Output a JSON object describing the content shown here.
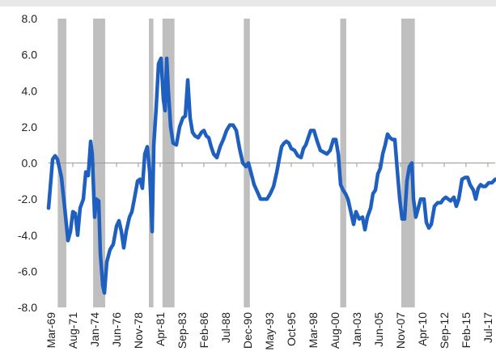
{
  "chart_data": {
    "type": "line",
    "x": [
      1968.9,
      1969.35,
      1969.62,
      1969.89,
      1970.33,
      1970.69,
      1971.05,
      1971.32,
      1971.59,
      1971.86,
      1972.12,
      1972.39,
      1972.75,
      1973.02,
      1973.29,
      1973.56,
      1973.73,
      1974.0,
      1974.18,
      1974.45,
      1974.63,
      1974.9,
      1975.08,
      1975.34,
      1975.7,
      1976.06,
      1976.42,
      1976.69,
      1976.96,
      1977.22,
      1977.49,
      1977.85,
      1978.12,
      1978.39,
      1978.75,
      1979.02,
      1979.28,
      1979.55,
      1979.82,
      1980.09,
      1980.36,
      1980.54,
      1980.8,
      1981.07,
      1981.34,
      1981.61,
      1981.79,
      1981.97,
      1982.15,
      1982.41,
      1982.68,
      1983.04,
      1983.4,
      1983.76,
      1984.03,
      1984.3,
      1984.56,
      1984.83,
      1985.1,
      1985.46,
      1985.82,
      1986.09,
      1986.35,
      1986.62,
      1986.89,
      1987.16,
      1987.52,
      1987.88,
      1988.23,
      1988.59,
      1988.95,
      1989.31,
      1989.67,
      1990.03,
      1990.39,
      1990.74,
      1991.01,
      1991.28,
      1991.64,
      1992.0,
      1992.35,
      1992.71,
      1993.07,
      1993.43,
      1993.79,
      1994.15,
      1994.41,
      1994.68,
      1994.95,
      1995.22,
      1995.48,
      1995.75,
      1996.11,
      1996.47,
      1996.83,
      1997.1,
      1997.36,
      1997.63,
      1997.9,
      1998.26,
      1998.62,
      1998.97,
      1999.33,
      1999.69,
      2000.05,
      2000.41,
      2000.68,
      2000.95,
      2001.21,
      2001.48,
      2001.75,
      2002.02,
      2002.38,
      2002.65,
      2002.91,
      2003.27,
      2003.63,
      2003.9,
      2004.17,
      2004.53,
      2004.79,
      2005.06,
      2005.33,
      2005.6,
      2005.87,
      2006.14,
      2006.4,
      2006.67,
      2006.94,
      2007.21,
      2007.48,
      2007.75,
      2008.01,
      2008.28,
      2008.55,
      2008.82,
      2009.09,
      2009.27,
      2009.53,
      2009.8,
      2010.07,
      2010.43,
      2010.7,
      2010.97,
      2011.24,
      2011.59,
      2011.95,
      2012.31,
      2012.58,
      2012.85,
      2013.11,
      2013.38,
      2013.74,
      2014.01,
      2014.28,
      2014.64,
      2015.0,
      2015.26,
      2015.53,
      2015.89,
      2016.16,
      2016.43,
      2016.7,
      2016.96,
      2017.23,
      2017.59,
      2017.95,
      2018.31
    ],
    "series": [
      {
        "color": "#1f5fbf",
        "values": [
          -2.5,
          0.2,
          0.4,
          0.2,
          -0.8,
          -2.5,
          -4.3,
          -3.8,
          -2.7,
          -2.8,
          -4.0,
          -2.5,
          -2.0,
          -0.5,
          -0.7,
          1.2,
          0.5,
          -3.0,
          -2.0,
          -2.1,
          -5.0,
          -6.8,
          -7.2,
          -5.5,
          -4.8,
          -4.5,
          -3.5,
          -3.2,
          -3.8,
          -4.7,
          -3.8,
          -3.0,
          -2.7,
          -2.0,
          -1.0,
          -0.9,
          -1.4,
          0.5,
          0.9,
          -0.5,
          -3.8,
          1.0,
          3.0,
          5.5,
          5.8,
          3.5,
          2.9,
          5.8,
          4.0,
          2.0,
          1.1,
          1.0,
          2.0,
          2.5,
          2.6,
          4.6,
          2.5,
          1.7,
          1.5,
          1.4,
          1.7,
          1.8,
          1.5,
          1.4,
          0.9,
          0.5,
          0.3,
          0.9,
          1.3,
          1.8,
          2.1,
          2.1,
          1.8,
          0.8,
          0.0,
          -0.2,
          0.0,
          -0.5,
          -1.2,
          -1.6,
          -2.0,
          -2.0,
          -2.0,
          -1.7,
          -1.3,
          -0.5,
          0.2,
          0.9,
          1.1,
          1.2,
          1.1,
          0.8,
          0.7,
          0.4,
          0.3,
          0.8,
          1.0,
          1.4,
          1.8,
          1.8,
          1.2,
          0.7,
          0.6,
          0.5,
          0.7,
          1.3,
          1.3,
          0.5,
          -1.2,
          -1.5,
          -1.7,
          -2.0,
          -2.8,
          -3.4,
          -2.7,
          -3.1,
          -3.0,
          -3.7,
          -3.0,
          -2.5,
          -1.7,
          -1.5,
          -0.6,
          -0.3,
          0.5,
          1.0,
          1.6,
          1.4,
          1.3,
          1.3,
          -0.4,
          -2.0,
          -3.1,
          -3.1,
          -1.0,
          -0.2,
          0.0,
          -2.0,
          -3.0,
          -2.5,
          -2.0,
          -2.0,
          -3.3,
          -3.6,
          -3.4,
          -2.4,
          -2.2,
          -2.2,
          -2.0,
          -1.9,
          -2.0,
          -2.1,
          -1.9,
          -2.4,
          -2.0,
          -0.9,
          -0.8,
          -0.8,
          -1.2,
          -1.5,
          -2.0,
          -1.4,
          -1.2,
          -1.3,
          -1.3,
          -1.1,
          -1.1,
          -0.9
        ]
      }
    ],
    "shaded_periods": [
      [
        1969.92,
        1970.87
      ],
      [
        1973.83,
        1975.17
      ],
      [
        1980.0,
        1980.5
      ],
      [
        1981.5,
        1982.83
      ],
      [
        1990.5,
        1991.17
      ],
      [
        2001.17,
        2001.83
      ],
      [
        2007.92,
        2009.42
      ]
    ],
    "shade_color": "#bfbfbf",
    "xlim": [
      1968.9,
      2018.31
    ],
    "xticks": [
      {
        "value": 1969.17,
        "label": "Mar-69"
      },
      {
        "value": 1971.58,
        "label": "Aug-71"
      },
      {
        "value": 1974.0,
        "label": "Jan-74"
      },
      {
        "value": 1976.42,
        "label": "Jun-76"
      },
      {
        "value": 1978.83,
        "label": "Nov-78"
      },
      {
        "value": 1981.25,
        "label": "Apr-81"
      },
      {
        "value": 1983.67,
        "label": "Sep-83"
      },
      {
        "value": 1986.08,
        "label": "Feb-86"
      },
      {
        "value": 1988.5,
        "label": "Jul-88"
      },
      {
        "value": 1990.92,
        "label": "Dec-90"
      },
      {
        "value": 1993.33,
        "label": "May-93"
      },
      {
        "value": 1995.75,
        "label": "Oct-95"
      },
      {
        "value": 1998.17,
        "label": "Mar-98"
      },
      {
        "value": 2000.58,
        "label": "Aug-00"
      },
      {
        "value": 2003.0,
        "label": "Jan-03"
      },
      {
        "value": 2005.42,
        "label": "Jun-05"
      },
      {
        "value": 2007.83,
        "label": "Nov-07"
      },
      {
        "value": 2010.25,
        "label": "Apr-10"
      },
      {
        "value": 2012.67,
        "label": "Sep-12"
      },
      {
        "value": 2015.08,
        "label": "Feb-15"
      },
      {
        "value": 2017.5,
        "label": "Jul-17"
      }
    ],
    "ylim": [
      -8,
      8
    ],
    "yticks": [
      {
        "value": 8,
        "label": "8.0"
      },
      {
        "value": 6,
        "label": "6.0"
      },
      {
        "value": 4,
        "label": "4.0"
      },
      {
        "value": 2,
        "label": "2.0"
      },
      {
        "value": 0,
        "label": "0.0"
      },
      {
        "value": -2,
        "label": "-2.0"
      },
      {
        "value": -4,
        "label": "-4.0"
      },
      {
        "value": -6,
        "label": "-6.0"
      },
      {
        "value": -8,
        "label": "-8.0"
      }
    ]
  }
}
